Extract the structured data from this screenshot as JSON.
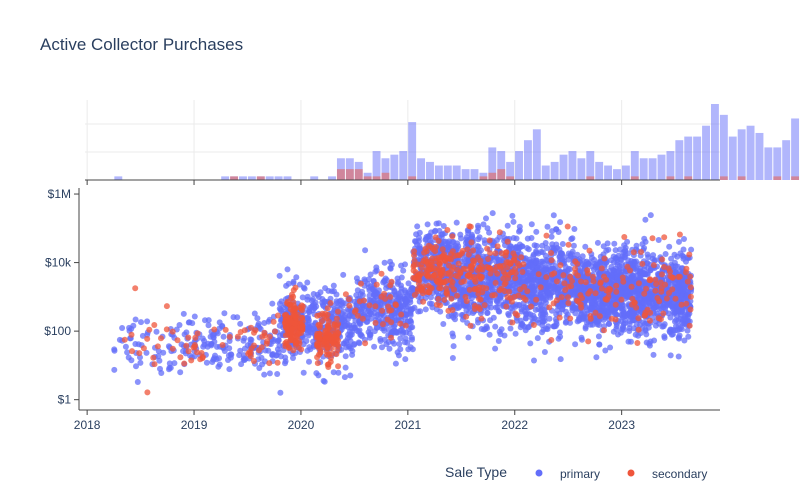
{
  "chart_data": {
    "type": "scatter",
    "title": "Active Collector Purchases",
    "y_scale": "log",
    "y_ticks": [
      {
        "value": 1,
        "label": "$1"
      },
      {
        "value": 100,
        "label": "$100"
      },
      {
        "value": 10000,
        "label": "$10k"
      },
      {
        "value": 1000000,
        "label": "$1M"
      }
    ],
    "ylim": [
      0.5,
      1500000
    ],
    "x_ticks": [
      "2018",
      "2019",
      "2020",
      "2021",
      "2022",
      "2023"
    ],
    "xlim": [
      2017.98,
      2023.92
    ],
    "legend": {
      "title": "Sale Type",
      "placement": "bottom-right",
      "entries": [
        {
          "name": "primary",
          "color": "#636efa"
        },
        {
          "name": "secondary",
          "color": "#ef553b"
        }
      ]
    },
    "marginal_histogram": {
      "bin_width_years": 0.0833,
      "start": 2018.0,
      "primary_counts": [
        0,
        0,
        0,
        1,
        0,
        0,
        0,
        0,
        0,
        0,
        0,
        0,
        0,
        0,
        0,
        1,
        1,
        1,
        1,
        1,
        1,
        1,
        1,
        0,
        0,
        1,
        0,
        1,
        6,
        6,
        5,
        2,
        8,
        6,
        7,
        8,
        16,
        6,
        5,
        4,
        4,
        4,
        3,
        3,
        2,
        9,
        8,
        5,
        8,
        11,
        14,
        4,
        5,
        7,
        8,
        6,
        8,
        5,
        4,
        3,
        4,
        8,
        6,
        6,
        7,
        8,
        11,
        12,
        12,
        15,
        21,
        18,
        12,
        14,
        15,
        13,
        9,
        9,
        11,
        17,
        7
      ],
      "secondary_counts": [
        0,
        0,
        0,
        0,
        0,
        0,
        0,
        0,
        0,
        0,
        0,
        0,
        0,
        0,
        0,
        0,
        1,
        0,
        0,
        1,
        0,
        0,
        0,
        0,
        0,
        0,
        0,
        0,
        3,
        3,
        3,
        1,
        1,
        2,
        0,
        0,
        1,
        0,
        0,
        0,
        0,
        0,
        0,
        0,
        1,
        2,
        3,
        1,
        0,
        0,
        0,
        0,
        0,
        0,
        0,
        0,
        1,
        0,
        0,
        0,
        0,
        1,
        0,
        0,
        0,
        1,
        0,
        1,
        0,
        0,
        0,
        1,
        0,
        1,
        0,
        0,
        0,
        1,
        0,
        1,
        0
      ]
    },
    "series": [
      {
        "name": "primary",
        "color": "#636efa",
        "segments": [
          {
            "x0": 2018.25,
            "x1": 2018.9,
            "y_center": 40,
            "spread": 0.45,
            "count": 60
          },
          {
            "x0": 2018.9,
            "x1": 2019.8,
            "y_center": 45,
            "spread": 0.4,
            "count": 160
          },
          {
            "x0": 2019.8,
            "x1": 2020.5,
            "y_center": 130,
            "spread": 0.55,
            "count": 380
          },
          {
            "x0": 2020.5,
            "x1": 2021.05,
            "y_center": 420,
            "spread": 0.55,
            "count": 360
          },
          {
            "x0": 2021.05,
            "x1": 2021.4,
            "y_center": 6000,
            "spread": 0.6,
            "count": 300
          },
          {
            "x0": 2021.4,
            "x1": 2022.05,
            "y_center": 3500,
            "spread": 0.7,
            "count": 700
          },
          {
            "x0": 2022.05,
            "x1": 2022.6,
            "y_center": 2200,
            "spread": 0.65,
            "count": 550
          },
          {
            "x0": 2022.6,
            "x1": 2023.65,
            "y_center": 1300,
            "spread": 0.6,
            "count": 1300
          }
        ]
      },
      {
        "name": "secondary",
        "color": "#ef553b",
        "segments": [
          {
            "x0": 2018.25,
            "x1": 2018.9,
            "y_center": 40,
            "spread": 0.5,
            "count": 20
          },
          {
            "x0": 2018.9,
            "x1": 2019.8,
            "y_center": 45,
            "spread": 0.4,
            "count": 45
          },
          {
            "x0": 2019.85,
            "x1": 2020.02,
            "y_center": 150,
            "spread": 0.45,
            "count": 140
          },
          {
            "x0": 2020.15,
            "x1": 2020.35,
            "y_center": 60,
            "spread": 0.35,
            "count": 110
          },
          {
            "x0": 2020.4,
            "x1": 2021.05,
            "y_center": 500,
            "spread": 0.5,
            "count": 35
          },
          {
            "x0": 2021.05,
            "x1": 2021.35,
            "y_center": 5000,
            "spread": 0.4,
            "count": 110
          },
          {
            "x0": 2021.35,
            "x1": 2022.05,
            "y_center": 4500,
            "spread": 0.55,
            "count": 160
          },
          {
            "x0": 2022.05,
            "x1": 2022.6,
            "y_center": 2500,
            "spread": 0.6,
            "count": 45
          },
          {
            "x0": 2022.6,
            "x1": 2023.65,
            "y_center": 1500,
            "spread": 0.6,
            "count": 110
          }
        ]
      }
    ]
  }
}
